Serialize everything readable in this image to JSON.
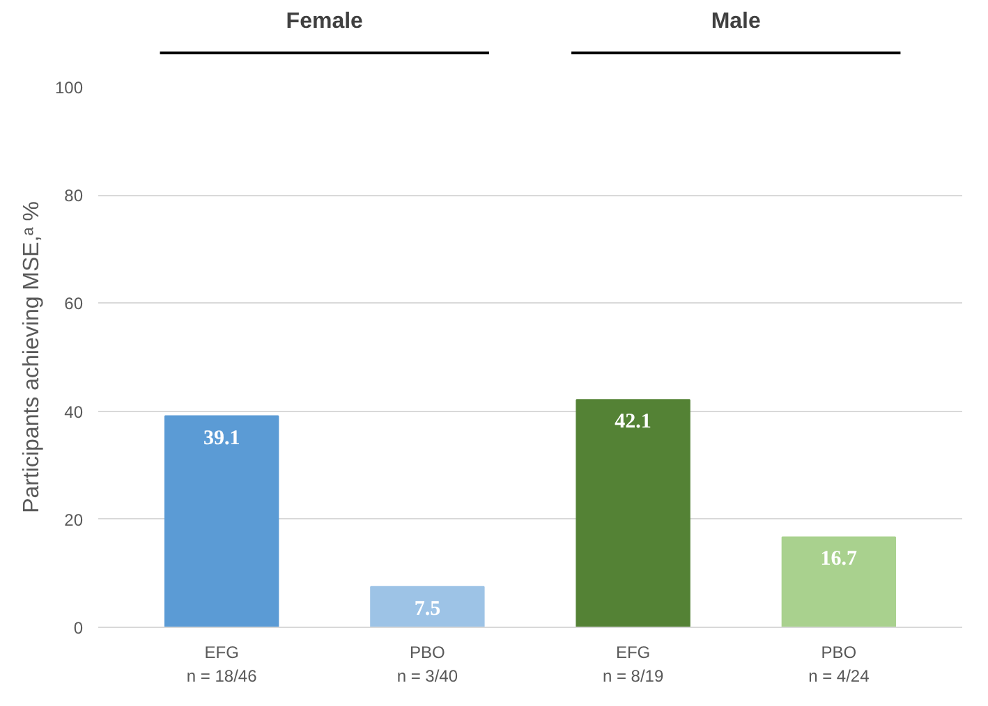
{
  "chart_data": {
    "type": "bar",
    "ylabel": "Participants achieving MSE,ᵃ %",
    "categories": [
      "EFG\nn = 18/46",
      "PBO\nn = 3/40",
      "EFG\nn = 8/19",
      "PBO\nn = 4/24"
    ],
    "values": [
      39.1,
      7.5,
      42.1,
      16.7
    ],
    "colors": [
      "#5b9bd5",
      "#9dc3e6",
      "#548235",
      "#a9d18e"
    ],
    "data_labels": true,
    "ylim": [
      0,
      100
    ],
    "yticks": [
      0,
      20,
      40,
      60,
      80,
      100
    ],
    "grid": "y",
    "annotations": [
      "Female",
      "Male"
    ]
  }
}
